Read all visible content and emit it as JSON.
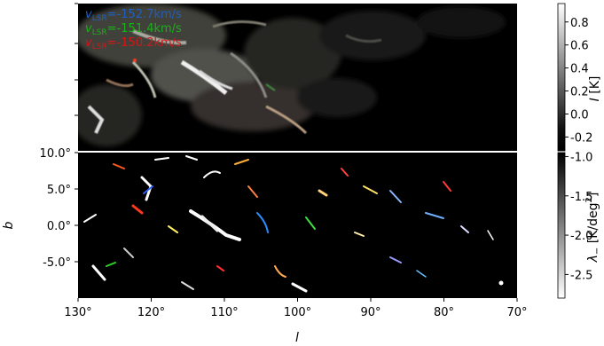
{
  "chart_data": [
    {
      "panel": "top",
      "type": "heatmap",
      "annotations": [
        {
          "symbol": "v",
          "subscript": "LSR",
          "text": "=-152.7km/s",
          "color": "#1f5fbf"
        },
        {
          "symbol": "v",
          "subscript": "LSR",
          "text": "=-151.4km/s",
          "color": "#19b019"
        },
        {
          "symbol": "v",
          "subscript": "LSR",
          "text": "=-150.2km/s",
          "color": "#d01818"
        }
      ],
      "colorbar": {
        "label_symbol": "I",
        "label_unit": "[K]",
        "ticks": [
          "0.8",
          "0.6",
          "0.4",
          "0.2",
          "0.0",
          "-0.2"
        ],
        "tick_values": [
          0.8,
          0.6,
          0.4,
          0.2,
          0.0,
          -0.2
        ],
        "range": [
          -0.32,
          0.96
        ]
      }
    },
    {
      "panel": "bottom",
      "type": "heatmap",
      "xlabel": "l",
      "ylabel": "b",
      "x_ticks": [
        "130°",
        "120°",
        "110°",
        "100°",
        "90°",
        "80°",
        "70°"
      ],
      "x_tick_values": [
        130,
        120,
        110,
        100,
        90,
        80,
        70
      ],
      "xlim": [
        130,
        70
      ],
      "y_ticks": [
        "10.0°",
        "5.0°",
        "0.0°",
        "-5.0°"
      ],
      "y_tick_values": [
        10,
        5,
        0,
        -5
      ],
      "ylim": [
        -10,
        10
      ],
      "colorbar": {
        "label_symbol": "λ",
        "label_sub": "−",
        "label_unit": "[K/deg",
        "label_sup": "2",
        "label_end": "]",
        "ticks": [
          "-1.0",
          "-1.5",
          "-2.0",
          "-2.5"
        ],
        "tick_values": [
          -1.0,
          -1.5,
          -2.0,
          -2.5
        ],
        "range": [
          -2.8,
          -0.95
        ]
      }
    }
  ]
}
